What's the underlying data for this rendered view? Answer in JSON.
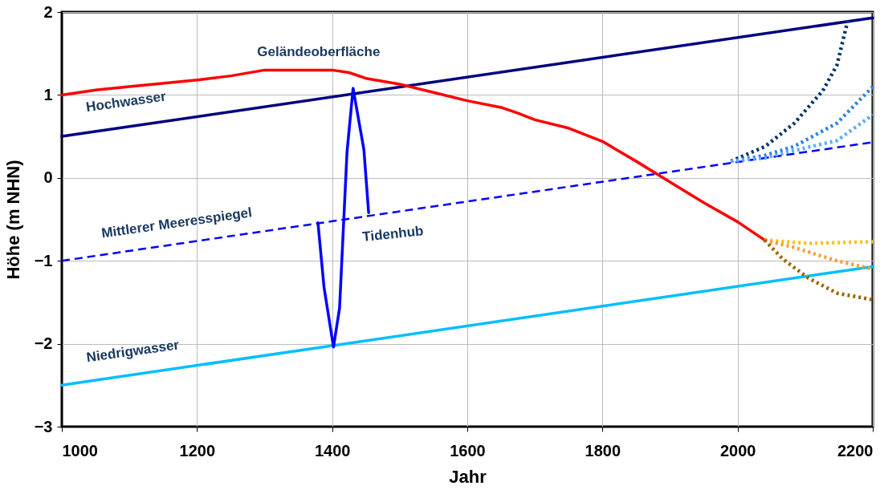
{
  "chart_data": {
    "type": "line",
    "xlabel": "Jahr",
    "ylabel": "Höhe (m NHN)",
    "xlim": [
      1000,
      2200
    ],
    "xticks": [
      1000,
      1200,
      1400,
      1600,
      1800,
      2000,
      2200
    ],
    "ylim": [
      -3,
      2
    ],
    "yticks": [
      -3,
      -2,
      -1,
      0,
      1,
      2
    ],
    "grid": true,
    "marker": "none",
    "series": [
      {
        "name": "Hochwasser",
        "color": "#000080",
        "line_style": "solid",
        "x": [
          1000,
          2200
        ],
        "values": [
          0.5,
          1.93
        ]
      },
      {
        "name": "Mittlerer Meeresspiegel",
        "color": "#0000ff",
        "line_style": "dashed",
        "x": [
          1000,
          2200
        ],
        "values": [
          -1.0,
          0.43
        ]
      },
      {
        "name": "Niedrigwasser",
        "color": "#00bfff",
        "line_style": "solid",
        "x": [
          1000,
          2200
        ],
        "values": [
          -2.5,
          -1.07
        ]
      },
      {
        "name": "Geländeoberfläche",
        "color": "#ff0000",
        "line_style": "solid",
        "x": [
          1000,
          1050,
          1100,
          1200,
          1250,
          1300,
          1350,
          1400,
          1425,
          1450,
          1500,
          1550,
          1600,
          1650,
          1675,
          1700,
          1750,
          1800,
          1850,
          1900,
          1950,
          2000,
          2040
        ],
        "values": [
          1.0,
          1.06,
          1.1,
          1.18,
          1.23,
          1.3,
          1.3,
          1.3,
          1.27,
          1.2,
          1.13,
          1.03,
          0.93,
          0.85,
          0.78,
          0.7,
          0.6,
          0.44,
          0.2,
          -0.05,
          -0.3,
          -0.53,
          -0.75
        ]
      },
      {
        "name": "Tidenhub",
        "color": "#0000ff",
        "line_style": "solid",
        "x": [
          1379,
          1388,
          1402,
          1411,
          1422,
          1431,
          1447,
          1454
        ],
        "values": [
          -0.54,
          -1.32,
          -2.04,
          -1.57,
          0.31,
          1.08,
          0.34,
          -0.42
        ]
      },
      {
        "color": "#003366",
        "line_style": "dotted",
        "x": [
          1990,
          2041,
          2084,
          2126,
          2147,
          2164
        ],
        "values": [
          0.2,
          0.38,
          0.66,
          1.05,
          1.36,
          1.93
        ]
      },
      {
        "color": "#2f80e0",
        "line_style": "dotted",
        "x": [
          1990,
          2040,
          2084,
          2147,
          2200
        ],
        "values": [
          0.2,
          0.27,
          0.38,
          0.66,
          1.1
        ]
      },
      {
        "color": "#5aaaff",
        "line_style": "dotted",
        "x": [
          1990,
          2040,
          2084,
          2147,
          2200
        ],
        "values": [
          0.2,
          0.24,
          0.33,
          0.45,
          0.76
        ]
      },
      {
        "color": "#ffc000",
        "line_style": "dotted",
        "x": [
          2040,
          2105,
          2200
        ],
        "values": [
          -0.75,
          -0.79,
          -0.77
        ]
      },
      {
        "color": "#ff9933",
        "line_style": "dotted",
        "x": [
          2040,
          2084,
          2147,
          2200
        ],
        "values": [
          -0.75,
          -0.84,
          -1.0,
          -1.1
        ]
      },
      {
        "color": "#996600",
        "line_style": "dotted",
        "x": [
          2040,
          2067,
          2105,
          2147,
          2200
        ],
        "values": [
          -0.75,
          -0.98,
          -1.21,
          -1.39,
          -1.47
        ]
      }
    ]
  }
}
